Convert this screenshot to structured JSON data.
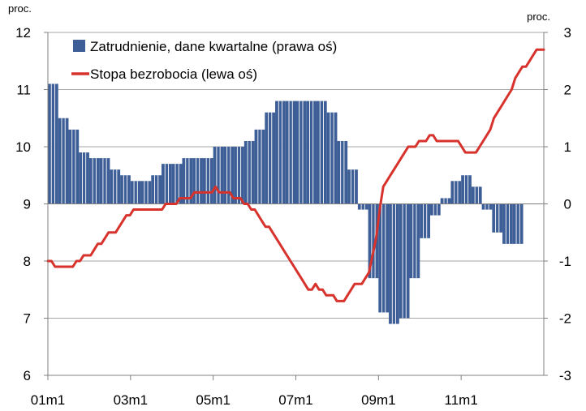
{
  "chart_data": {
    "type": "bar+line",
    "left_unit": "proc.",
    "right_unit": "proc.",
    "x_tick_labels": [
      "01m1",
      "03m1",
      "05m1",
      "07m1",
      "09m1",
      "11m1"
    ],
    "left_axis": {
      "min": 6,
      "max": 12,
      "ticks": [
        6,
        7,
        8,
        9,
        10,
        11,
        12
      ]
    },
    "right_axis": {
      "min": -3,
      "max": 3,
      "ticks": [
        -3,
        -2,
        -1,
        0,
        1,
        2,
        3
      ]
    },
    "grid": true,
    "legend_position": "top-left",
    "colors": {
      "bars": "#3d5e96",
      "line": "#d7322c",
      "grid": "#a6a6a6",
      "axis": "#808080"
    },
    "series": [
      {
        "name": "Zatrudnienie, dane kwartalne (prawa oś)",
        "type": "bar",
        "axis": "right",
        "values": [
          2.1,
          1.5,
          1.3,
          0.9,
          0.8,
          0.8,
          0.6,
          0.5,
          0.4,
          0.4,
          0.5,
          0.7,
          0.7,
          0.8,
          0.8,
          0.8,
          1.0,
          1.0,
          1.0,
          1.1,
          1.3,
          1.6,
          1.8,
          1.8,
          1.8,
          1.8,
          1.8,
          1.6,
          1.1,
          0.6,
          -0.1,
          -1.3,
          -1.9,
          -2.1,
          -2.0,
          -1.3,
          -0.6,
          -0.2,
          0.1,
          0.4,
          0.5,
          0.3,
          -0.1,
          -0.5,
          -0.7,
          -0.7
        ]
      },
      {
        "name": "Stopa bezrobocia (lewa oś)",
        "type": "line",
        "axis": "left",
        "values": [
          8.0,
          8.0,
          7.9,
          7.9,
          7.9,
          7.9,
          7.9,
          7.9,
          8.0,
          8.0,
          8.1,
          8.1,
          8.1,
          8.2,
          8.3,
          8.3,
          8.4,
          8.5,
          8.5,
          8.5,
          8.6,
          8.7,
          8.8,
          8.8,
          8.9,
          8.9,
          8.9,
          8.9,
          8.9,
          8.9,
          8.9,
          8.9,
          8.9,
          9.0,
          9.0,
          9.0,
          9.0,
          9.1,
          9.1,
          9.1,
          9.1,
          9.2,
          9.2,
          9.2,
          9.2,
          9.2,
          9.2,
          9.3,
          9.2,
          9.2,
          9.2,
          9.2,
          9.1,
          9.1,
          9.1,
          9.0,
          9.0,
          8.9,
          8.9,
          8.8,
          8.7,
          8.6,
          8.6,
          8.5,
          8.4,
          8.3,
          8.2,
          8.1,
          8.0,
          7.9,
          7.8,
          7.7,
          7.6,
          7.5,
          7.5,
          7.6,
          7.5,
          7.5,
          7.4,
          7.4,
          7.4,
          7.3,
          7.3,
          7.3,
          7.4,
          7.5,
          7.6,
          7.6,
          7.6,
          7.7,
          7.8,
          8.1,
          8.4,
          8.9,
          9.3,
          9.4,
          9.5,
          9.6,
          9.7,
          9.8,
          9.9,
          10.0,
          10.0,
          10.0,
          10.1,
          10.1,
          10.1,
          10.2,
          10.2,
          10.1,
          10.1,
          10.1,
          10.1,
          10.1,
          10.1,
          10.1,
          10.0,
          9.9,
          9.9,
          9.9,
          9.9,
          10.0,
          10.1,
          10.2,
          10.3,
          10.5,
          10.6,
          10.7,
          10.8,
          10.9,
          11.0,
          11.2,
          11.3,
          11.4,
          11.4,
          11.5,
          11.6,
          11.7,
          11.7,
          11.7
        ]
      }
    ]
  }
}
